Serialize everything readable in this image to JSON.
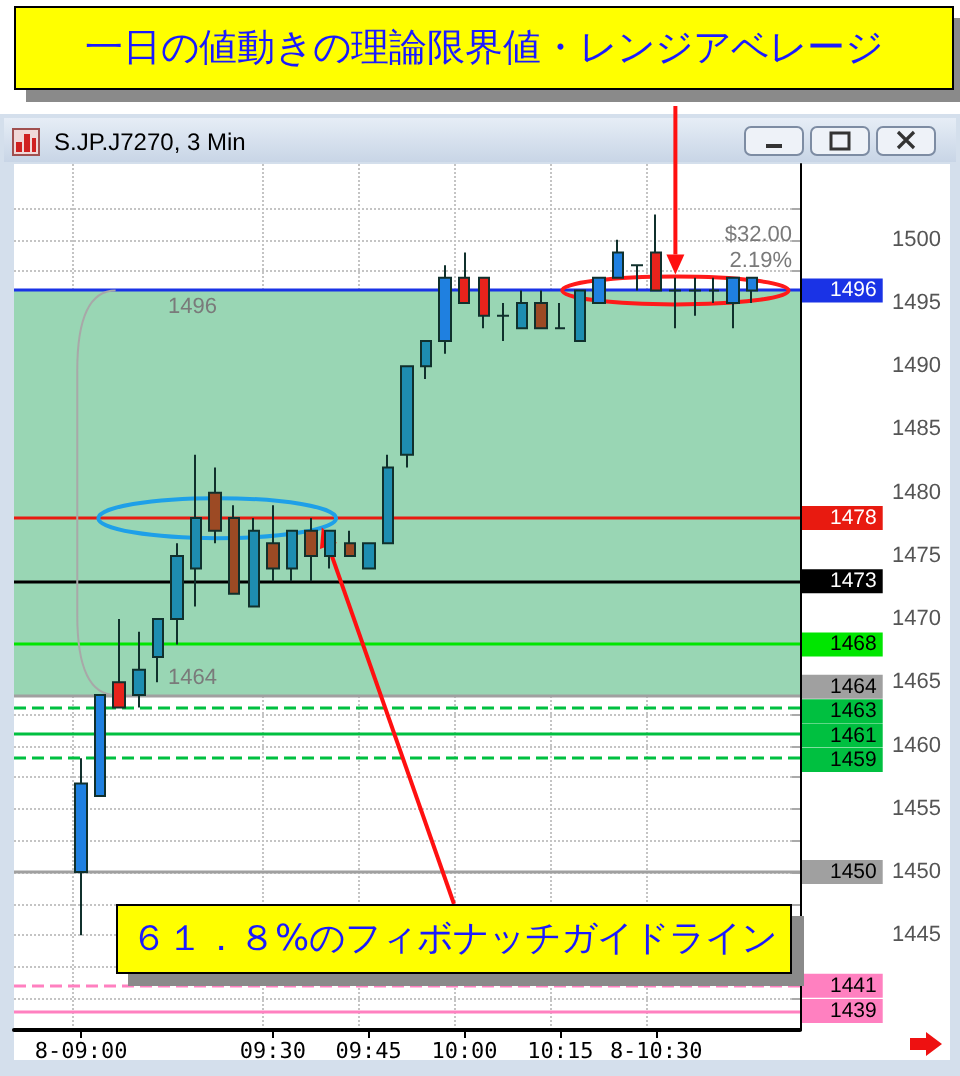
{
  "chart_data": {
    "type": "candlestick",
    "title": "S.JP.J7270, 3 Min",
    "categories": [
      null,
      null,
      null,
      "8-09:00",
      null,
      null,
      null,
      null,
      null,
      null,
      null,
      null,
      null,
      "09:30",
      null,
      null,
      null,
      null,
      "09:45",
      null,
      null,
      null,
      null,
      "10:00",
      null,
      null,
      null,
      null,
      "10:15",
      null,
      null,
      null,
      null,
      "8-10:30",
      null,
      null,
      null,
      null,
      null,
      null,
      null
    ],
    "ohlc": [
      null,
      null,
      null,
      [
        1450,
        1459,
        1445,
        1457
      ],
      [
        1456,
        1464,
        1456,
        1464
      ],
      [
        1465,
        1470,
        1463,
        1463
      ],
      [
        1464,
        1469,
        1463,
        1466
      ],
      [
        1467,
        1470,
        1465,
        1470
      ],
      [
        1470,
        1476,
        1468,
        1475
      ],
      [
        1474,
        1483,
        1471,
        1478
      ],
      [
        1480,
        1482,
        1476,
        1477
      ],
      [
        1478,
        1479,
        1472,
        1472
      ],
      [
        1471,
        1478,
        1471,
        1477
      ],
      [
        1476,
        1479,
        1473,
        1474
      ],
      [
        1474,
        1477,
        1473,
        1477
      ],
      [
        1477,
        1478,
        1473,
        1475
      ],
      [
        1475,
        1477,
        1474,
        1477
      ],
      [
        1476,
        1477,
        1475,
        1475
      ],
      [
        1474,
        1476,
        1474,
        1476
      ],
      [
        1476,
        1483,
        1476,
        1482
      ],
      [
        1483,
        1490,
        1482,
        1490
      ],
      [
        1490,
        1492,
        1489,
        1492
      ],
      [
        1492,
        1498,
        1491,
        1497
      ],
      [
        1497,
        1499,
        1495,
        1495
      ],
      [
        1497,
        1497,
        1493,
        1494
      ],
      [
        1494,
        1495,
        1492,
        1494
      ],
      [
        1493,
        1496,
        1493,
        1495
      ],
      [
        1495,
        1496,
        1493,
        1493
      ],
      [
        1493,
        1495,
        1493,
        1493
      ],
      [
        1492,
        1496,
        1492,
        1496
      ],
      [
        1495,
        1497,
        1495,
        1497
      ],
      [
        1497,
        1500,
        1497,
        1499
      ],
      [
        1498,
        1498,
        1496,
        1498
      ],
      [
        1499,
        1502,
        1496,
        1496
      ],
      [
        1496,
        1497,
        1493,
        1496
      ],
      [
        1496,
        1497,
        1494,
        1496
      ],
      [
        1496,
        1497,
        1495,
        1496
      ],
      [
        1495,
        1497,
        1493,
        1497
      ],
      [
        1496,
        1497,
        1495,
        1497
      ],
      null,
      null
    ],
    "colors": [
      null,
      null,
      null,
      "#1f80e0",
      "#1f80e0",
      "#e8231c",
      "#1e8db0",
      "#1e8db0",
      "#1e8db0",
      "#1e8db0",
      "#9c4a24",
      "#9c4a24",
      "#1e8db0",
      "#9c4a24",
      "#1e8db0",
      "#9c4a24",
      "#1e8db0",
      "#9c4a24",
      "#1e8db0",
      "#1e8db0",
      "#1e8db0",
      "#1e8db0",
      "#1f80e0",
      "#e8231c",
      "#e8231c",
      "#1a3a30",
      "#1e8db0",
      "#9c4a24",
      "#1a3a30",
      "#1e8db0",
      "#1f80e0",
      "#1f80e0",
      "#1a3a30",
      "#e8231c",
      "#1a3a30",
      "#1a3a30",
      "#1a3a30",
      "#1f80e0",
      "#1f80e0",
      null,
      null
    ],
    "ylim": [
      1437.5,
      1506
    ],
    "yticks": [
      {
        "value": 1440,
        "label": null
      },
      {
        "value": 1442.5,
        "label": null
      },
      1445,
      {
        "value": 1447.5,
        "label": null
      },
      1450,
      {
        "value": 1452.5,
        "label": null
      },
      1455,
      {
        "value": 1457.5,
        "label": null
      },
      1460,
      {
        "value": 1462.5,
        "label": null
      },
      1465,
      {
        "value": 1467.5,
        "label": null
      },
      1470,
      {
        "value": 1472.5,
        "label": null
      },
      1475,
      {
        "value": 1477.5,
        "label": null
      },
      1480,
      {
        "value": 1482.5,
        "label": null
      },
      1485,
      {
        "value": 1487.5,
        "label": null
      },
      1490,
      {
        "value": 1492.5,
        "label": null
      },
      1495,
      {
        "value": 1497.5,
        "label": null
      },
      1500,
      {
        "value": 1502.5,
        "label": null
      }
    ],
    "grid": true,
    "ref_lines": [
      {
        "axis": "y",
        "value": 1496,
        "label": "1496",
        "color": "#1a33e6"
      },
      {
        "axis": "y",
        "value": 1478,
        "label": "1478",
        "color": "#e81a10"
      },
      {
        "axis": "y",
        "value": 1473,
        "label": "1473",
        "color": "#000000"
      },
      {
        "axis": "y",
        "value": 1468,
        "label": "1468",
        "color": "#00e600"
      },
      {
        "axis": "y",
        "value": 1464,
        "label": "1464",
        "color": "#a0a0a0"
      },
      {
        "axis": "y",
        "value": 1463,
        "label": "1463",
        "color": "#00c040",
        "line_style": "dashed"
      },
      {
        "axis": "y",
        "value": 1461,
        "label": "1461",
        "color": "#00c040"
      },
      {
        "axis": "y",
        "value": 1459,
        "label": "1459",
        "color": "#00c040",
        "line_style": "dashed"
      },
      {
        "axis": "y",
        "value": 1450,
        "label": "1450",
        "color": "#a0a0a0"
      },
      {
        "axis": "y",
        "value": 1441,
        "label": "1441",
        "color": "#ff80c0",
        "line_style": "dashed"
      },
      {
        "axis": "y",
        "value": 1439,
        "label": "1439",
        "color": "#ff80c0"
      }
    ],
    "bands": [
      {
        "axis": "y",
        "from": 1464,
        "to": 1496,
        "label": "$32.00",
        "color": "#99d6b4"
      }
    ],
    "annotations": [
      "一日の値動きの理論限界値・レンジアベレージ",
      "６１．８%のフィボナッチガイドライン",
      {
        "text": "1496",
        "y": 1496
      },
      {
        "text": "1464",
        "y": 1464
      },
      "2.19%"
    ]
  }
}
